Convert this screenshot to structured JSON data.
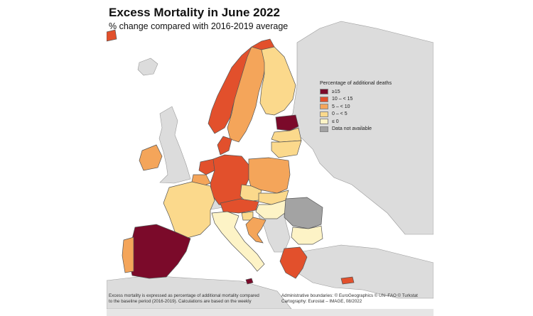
{
  "map": {
    "title": "Excess Mortality in June 2022",
    "subtitle": "% change compared with 2016-2019 average",
    "legend": {
      "title": "Percentage of additional deaths",
      "items": [
        {
          "label": "≥15",
          "color": "#7b0a2a"
        },
        {
          "label": "10 – < 15",
          "color": "#e2502c"
        },
        {
          "label": "5 – < 10",
          "color": "#f4a55a"
        },
        {
          "label": "0 – < 5",
          "color": "#fbd98c"
        },
        {
          "label": "≤ 0",
          "color": "#fdf3c6"
        },
        {
          "label": "Data not available",
          "color": "#a3a3a3"
        }
      ]
    },
    "colors": {
      "sea": "#ffffff",
      "non_eu_land": "#dcdcdc",
      "border": "#555555"
    },
    "footer_left": [
      "Excess mortality is expressed as percentage of additional mortality compared",
      "to the baseline period (2016-2019). Calculations are based on the weekly"
    ],
    "footer_right": [
      "Administrative boundaries: © EuroGeographics © UN–FAO © Turkstat",
      "Cartography: Eurostat – IMAGE, 08/2022"
    ],
    "countries": [
      {
        "name": "Spain",
        "class": "≥15"
      },
      {
        "name": "Estonia",
        "class": "≥15"
      },
      {
        "name": "Malta",
        "class": "≥15"
      },
      {
        "name": "Norway",
        "class": "10 – < 15"
      },
      {
        "name": "Germany",
        "class": "10 – < 15"
      },
      {
        "name": "Austria",
        "class": "10 – < 15"
      },
      {
        "name": "Greece",
        "class": "10 – < 15"
      },
      {
        "name": "Cyprus",
        "class": "10 – < 15"
      },
      {
        "name": "Denmark",
        "class": "10 – < 15"
      },
      {
        "name": "Netherlands",
        "class": "10 – < 15"
      },
      {
        "name": "Iceland",
        "class": "10 – < 15"
      },
      {
        "name": "Sweden",
        "class": "5 – < 10"
      },
      {
        "name": "Poland",
        "class": "5 – < 10"
      },
      {
        "name": "Ireland",
        "class": "5 – < 10"
      },
      {
        "name": "Portugal",
        "class": "5 – < 10"
      },
      {
        "name": "Croatia",
        "class": "5 – < 10"
      },
      {
        "name": "Belgium",
        "class": "5 – < 10"
      },
      {
        "name": "Finland",
        "class": "0 – < 5"
      },
      {
        "name": "France",
        "class": "0 – < 5"
      },
      {
        "name": "Czechia",
        "class": "0 – < 5"
      },
      {
        "name": "Latvia",
        "class": "0 – < 5"
      },
      {
        "name": "Lithuania",
        "class": "0 – < 5"
      },
      {
        "name": "Slovakia",
        "class": "0 – < 5"
      },
      {
        "name": "Slovenia",
        "class": "0 – < 5"
      },
      {
        "name": "Italy",
        "class": "≤ 0"
      },
      {
        "name": "Hungary",
        "class": "≤ 0"
      },
      {
        "name": "Bulgaria",
        "class": "≤ 0"
      },
      {
        "name": "Romania",
        "class": "Data not available"
      }
    ]
  }
}
